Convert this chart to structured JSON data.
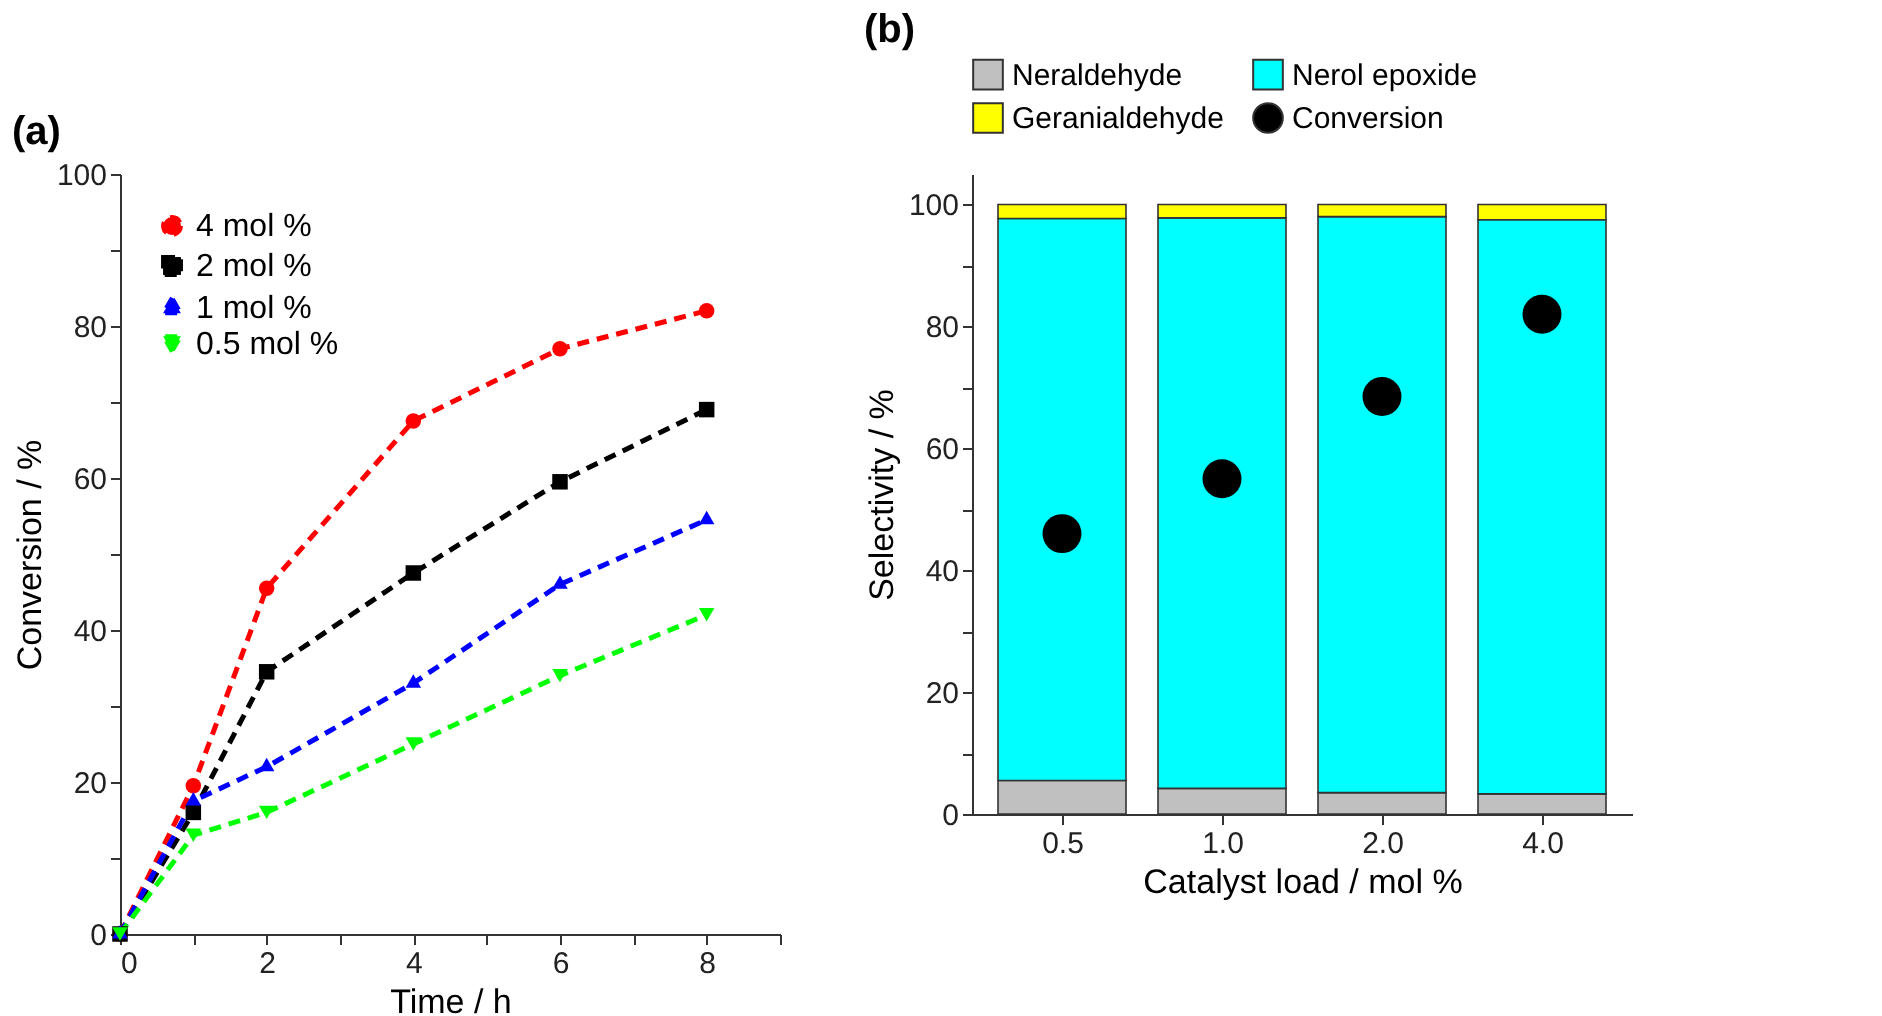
{
  "chart_data": [
    {
      "type": "line",
      "title": "(a)",
      "xlabel": "Time / h",
      "ylabel": "Conversion / %",
      "xlim": [
        0,
        9
      ],
      "xticks": [
        0,
        {
          "value": 1,
          "label": null
        },
        2,
        {
          "value": 3,
          "label": null
        },
        4,
        {
          "value": 5,
          "label": null
        },
        6,
        {
          "value": 7,
          "label": null
        },
        8,
        {
          "value": 9,
          "label": null
        }
      ],
      "ylim": [
        0,
        100
      ],
      "yticks": [
        0,
        {
          "value": 10,
          "label": null
        },
        20,
        {
          "value": 30,
          "label": null
        },
        40,
        {
          "value": 50,
          "label": null
        },
        60,
        {
          "value": 70,
          "label": null
        },
        80,
        {
          "value": 90,
          "label": null
        },
        100
      ],
      "x": [
        0,
        1,
        2,
        4,
        6,
        8
      ],
      "line_style": "dashed",
      "legend": "top left",
      "grid": false,
      "series": [
        {
          "name": "4 mol %",
          "color": "#ff0000",
          "marker": "circle",
          "values": [
            0,
            19.5,
            45.5,
            67.5,
            77,
            82
          ]
        },
        {
          "name": "2 mol %",
          "color": "#000000",
          "marker": "square",
          "values": [
            0,
            16,
            34.5,
            47.5,
            59.5,
            69
          ]
        },
        {
          "name": "1 mol %",
          "color": "#0000ff",
          "marker": "triangle",
          "values": [
            0,
            17.5,
            22,
            33,
            46,
            54.5
          ]
        },
        {
          "name": "0.5 mol %",
          "color": "#00ff00",
          "marker": "triangle-down",
          "values": [
            0,
            13,
            16,
            25,
            34,
            42
          ]
        }
      ]
    },
    {
      "type": "bar",
      "title": "(b)",
      "xlabel": "Catalyst load / mol %",
      "ylabel": "Selectivity / %",
      "categories": [
        "0.5",
        "1.0",
        "2.0",
        "4.0"
      ],
      "stacked": true,
      "legend": "top",
      "grid": false,
      "ylim": [
        0,
        105
      ],
      "yticks": [
        0,
        {
          "value": 10,
          "label": null
        },
        20,
        {
          "value": 30,
          "label": null
        },
        40,
        {
          "value": 50,
          "label": null
        },
        60,
        {
          "value": 70,
          "label": null
        },
        80,
        {
          "value": 90,
          "label": null
        },
        100
      ],
      "series": [
        {
          "name": "Neraldehyde",
          "color": "#c0c0c0",
          "values": [
            5.5,
            4.2,
            3.5,
            3.3
          ]
        },
        {
          "name": "Nerol epoxide",
          "color": "#00ffff",
          "values": [
            92.2,
            93.6,
            94.5,
            94.2
          ]
        },
        {
          "name": "Geranialdehyde",
          "color": "#ffff00",
          "values": [
            2.3,
            2.2,
            2.0,
            2.5
          ]
        },
        {
          "name": "Conversion",
          "type": "scatter",
          "color": "#000000",
          "marker": "circle",
          "x": [
            "0.5",
            "1.0",
            "2.0",
            "4.0"
          ],
          "values": [
            46,
            55,
            68.5,
            82
          ]
        }
      ]
    }
  ]
}
